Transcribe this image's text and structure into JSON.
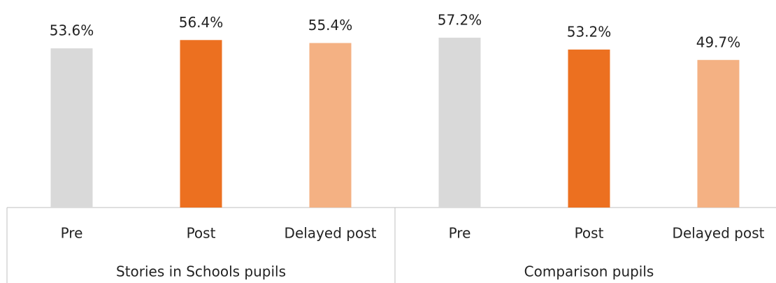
{
  "chart_data": {
    "type": "bar",
    "groups": [
      {
        "name": "Stories in Schools pupils",
        "categories": [
          "Pre",
          "Post",
          "Delayed post"
        ],
        "values": [
          53.6,
          56.4,
          55.4
        ],
        "value_labels": [
          "53.6%",
          "56.4%",
          "55.4%"
        ]
      },
      {
        "name": "Comparison pupils",
        "categories": [
          "Pre",
          "Post",
          "Delayed post"
        ],
        "values": [
          57.2,
          53.2,
          49.7
        ],
        "value_labels": [
          "57.2%",
          "53.2%",
          "49.7%"
        ]
      }
    ],
    "colors": [
      "#d9d9d9",
      "#ec7020",
      "#f4b183"
    ],
    "ylim": [
      0,
      60
    ]
  }
}
